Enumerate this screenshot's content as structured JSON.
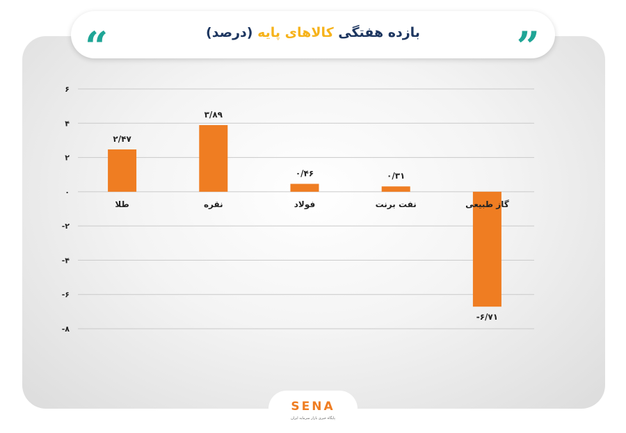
{
  "header": {
    "title_part1": "بازده هفتگی ",
    "title_part2": "کالاهای پایه",
    "title_part3": " (درصد)",
    "quote_left": "“",
    "quote_right": "”"
  },
  "footer": {
    "logo": "SENA",
    "logo_subtitle": "پایگاه خبری بازار سرمایه ایران"
  },
  "colors": {
    "bar": "#ef7d22",
    "title": "#1d3660",
    "title_highlight": "#f6b21a",
    "quote": "#1fa596",
    "grid": "#c9c9c9",
    "label": "#222222"
  },
  "chart_data": {
    "type": "bar",
    "title": "بازده هفتگی کالاهای پایه (درصد)",
    "categories": [
      "طلا",
      "نقره",
      "فولاد",
      "نفت برنت",
      "گاز طبیعی"
    ],
    "values": [
      2.47,
      3.89,
      0.46,
      0.31,
      -6.71
    ],
    "value_labels": [
      "۲/۴۷",
      "۳/۸۹",
      "۰/۴۶",
      "۰/۳۱",
      "-۶/۷۱"
    ],
    "yticks": [
      6,
      4,
      2,
      0,
      -2,
      -4,
      -6,
      -8
    ],
    "ytick_labels": [
      "۶",
      "۴",
      "۲",
      "۰",
      "-۲",
      "-۴",
      "-۶",
      "-۸"
    ],
    "ylim": [
      -8,
      6
    ],
    "grid": true
  }
}
